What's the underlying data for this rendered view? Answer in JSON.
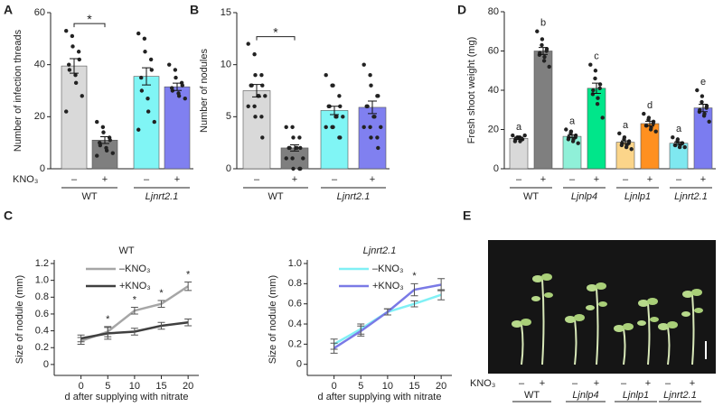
{
  "chart_data": [
    {
      "type": "bar",
      "panel": "A",
      "ylabel": "Number of infection threads",
      "ylim": [
        0,
        60
      ],
      "yticks": [
        0,
        20,
        40,
        60
      ],
      "treatment_label": "KNO₃",
      "categories": [
        "–",
        "+",
        "–",
        "+"
      ],
      "groups": [
        "WT",
        "Ljnrt2.1"
      ],
      "group_italic": [
        false,
        true
      ],
      "values": [
        39.5,
        11,
        35.5,
        31.5
      ],
      "errors": [
        2.8,
        1.3,
        3.3,
        1.4
      ],
      "colors": [
        "#d9d9d9",
        "#7f7f7f",
        "#80f5f5",
        "#8080f0"
      ],
      "points": [
        [
          53,
          51,
          47,
          45,
          42,
          40,
          38,
          36,
          33,
          28,
          22
        ],
        [
          18,
          16,
          14,
          12,
          11,
          10,
          9,
          8,
          7,
          6,
          5
        ],
        [
          52,
          50,
          45,
          42,
          38,
          35,
          30,
          27,
          22,
          18,
          15
        ],
        [
          40,
          38,
          35,
          33,
          32,
          31,
          30,
          29,
          28,
          27
        ]
      ],
      "significance_label": "*"
    },
    {
      "type": "bar",
      "panel": "B",
      "ylabel": "Number of nodules",
      "ylim": [
        0,
        15
      ],
      "yticks": [
        0,
        5,
        10,
        15
      ],
      "categories": [
        "–",
        "+",
        "–",
        "+"
      ],
      "groups": [
        "WT",
        "Ljnrt2.1"
      ],
      "group_italic": [
        false,
        true
      ],
      "values": [
        7.5,
        2,
        5.6,
        5.9
      ],
      "errors": [
        0.6,
        0.3,
        0.4,
        0.6
      ],
      "colors": [
        "#d9d9d9",
        "#7f7f7f",
        "#80f5f5",
        "#8080f0"
      ],
      "points": [
        [
          12,
          11,
          9,
          9,
          8,
          8,
          8,
          7,
          7,
          7,
          6,
          6,
          5,
          5,
          3
        ],
        [
          4,
          4,
          3,
          3,
          2,
          2,
          2,
          2,
          2,
          1,
          1,
          1,
          0,
          0,
          0
        ],
        [
          9,
          8,
          8,
          7,
          6,
          6,
          6,
          5,
          5,
          5,
          4,
          4,
          4,
          3,
          3
        ],
        [
          10,
          9,
          8,
          7,
          7,
          6,
          6,
          5,
          5,
          4,
          4,
          4,
          3,
          3,
          2
        ]
      ],
      "significance_label": "*"
    },
    {
      "type": "bar",
      "panel": "D",
      "ylabel": "Fresh shoot weight (mg)",
      "ylim": [
        0,
        80
      ],
      "yticks": [
        0,
        20,
        40,
        60,
        80
      ],
      "categories": [
        "–",
        "+",
        "–",
        "+",
        "–",
        "+",
        "–",
        "+"
      ],
      "groups": [
        "WT",
        "Ljnlp4",
        "Ljnlp1",
        "Ljnrt2.1"
      ],
      "group_italic": [
        false,
        true,
        true,
        true
      ],
      "values": [
        15.5,
        60,
        16.5,
        41,
        13.5,
        23,
        13,
        31
      ],
      "errors": [
        0.6,
        1.8,
        0.7,
        2.6,
        0.7,
        1.2,
        0.6,
        1.9
      ],
      "colors": [
        "#d9d9d9",
        "#7f7f7f",
        "#8ff0d8",
        "#00e68a",
        "#fbd58a",
        "#ff9020",
        "#7fe8f0",
        "#7b7cf0"
      ],
      "points": [
        [
          17,
          16,
          16,
          15,
          15,
          15,
          14,
          14,
          16,
          17
        ],
        [
          70,
          66,
          63,
          61,
          60,
          59,
          58,
          57,
          55,
          52
        ],
        [
          20,
          19,
          18,
          17,
          16,
          16,
          15,
          15,
          14,
          13
        ],
        [
          53,
          50,
          46,
          43,
          41,
          40,
          38,
          36,
          33,
          26
        ],
        [
          18,
          16,
          15,
          14,
          13,
          13,
          12,
          12,
          11,
          10
        ],
        [
          28,
          26,
          25,
          24,
          23,
          22,
          22,
          21,
          20,
          19
        ],
        [
          16,
          15,
          14,
          13,
          13,
          12,
          12,
          12,
          11,
          11
        ],
        [
          40,
          37,
          34,
          32,
          31,
          30,
          29,
          28,
          27,
          24
        ]
      ],
      "letters": [
        "a",
        "b",
        "a",
        "c",
        "a",
        "d",
        "a",
        "e"
      ]
    },
    {
      "type": "line",
      "panel": "C",
      "title": "WT",
      "title_italic": false,
      "ylabel": "Size of nodule (mm)",
      "xlabel": "d after supplying with nitrate",
      "x": [
        0,
        5,
        10,
        15,
        20
      ],
      "xlim": [
        -5,
        22
      ],
      "xticks": [
        0,
        5,
        10,
        15,
        20
      ],
      "ylim": [
        -0.13,
        1.2
      ],
      "yticks": [
        0,
        0.2,
        0.4,
        0.6,
        0.8,
        {
          "value": 1,
          "label": "1.0"
        },
        1.2
      ],
      "legend": "upper left",
      "series": [
        {
          "name": "–KNO₃",
          "color": "#a6a6a6",
          "values": [
            0.28,
            0.39,
            0.64,
            0.72,
            0.93
          ],
          "errors": [
            0.04,
            0.06,
            0.04,
            0.04,
            0.05
          ]
        },
        {
          "name": "+KNO₃",
          "color": "#404040",
          "values": [
            0.31,
            0.37,
            0.39,
            0.46,
            0.5
          ],
          "errors": [
            0.04,
            0.07,
            0.04,
            0.04,
            0.04
          ]
        }
      ],
      "significance": [
        null,
        "*",
        "*",
        "*",
        "*"
      ]
    },
    {
      "type": "line",
      "title": "Ljnrt2.1",
      "title_italic": true,
      "ylabel": "Size of nodule (mm)",
      "xlabel": "d after supplying with nitrate",
      "x": [
        0,
        5,
        10,
        15,
        20
      ],
      "xlim": [
        -5,
        22
      ],
      "xticks": [
        0,
        5,
        10,
        15,
        20
      ],
      "ylim": [
        -0.11,
        1.0
      ],
      "yticks": [
        0,
        0.2,
        0.4,
        0.6,
        0.8,
        {
          "value": 1,
          "label": "1.0"
        }
      ],
      "legend": "upper left",
      "series": [
        {
          "name": "–KNO₃",
          "color": "#80f0f5",
          "values": [
            0.2,
            0.35,
            0.52,
            0.6,
            0.69
          ],
          "errors": [
            0.05,
            0.05,
            0.03,
            0.03,
            0.05
          ]
        },
        {
          "name": "+KNO₃",
          "color": "#7a7ae6",
          "values": [
            0.16,
            0.33,
            0.52,
            0.74,
            0.79
          ],
          "errors": [
            0.05,
            0.05,
            0.03,
            0.06,
            0.06
          ]
        }
      ],
      "significance": [
        null,
        null,
        null,
        "*",
        null
      ]
    }
  ],
  "photo": {
    "panel": "E",
    "treatment_label": "KNO₃",
    "categories": [
      "–",
      "+",
      "–",
      "+",
      "–",
      "+",
      "–",
      "+"
    ],
    "groups": [
      "WT",
      "Ljnlp4",
      "Ljnlp1",
      "Ljnrt2.1"
    ],
    "group_italic": [
      false,
      true,
      true,
      true
    ]
  }
}
